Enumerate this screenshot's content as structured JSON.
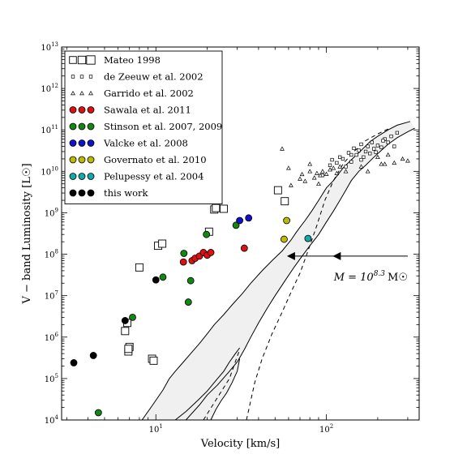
{
  "chart_data": {
    "type": "scatter",
    "xlabel": "Velocity [km/s]",
    "ylabel": "V − band Luminosity [L☉]",
    "xscale": "log",
    "yscale": "log",
    "xlim": [
      2.8,
      350
    ],
    "ylim": [
      10000,
      10000000000000.0
    ],
    "x_tick_labels": [
      {
        "v": 10,
        "base": "10",
        "exp": "1"
      },
      {
        "v": 100,
        "base": "10",
        "exp": "2"
      }
    ],
    "y_tick_labels": [
      {
        "v": 10000.0,
        "base": "10",
        "exp": "4"
      },
      {
        "v": 100000.0,
        "base": "10",
        "exp": "5"
      },
      {
        "v": 1000000.0,
        "base": "10",
        "exp": "6"
      },
      {
        "v": 10000000.0,
        "base": "10",
        "exp": "7"
      },
      {
        "v": 100000000.0,
        "base": "10",
        "exp": "8"
      },
      {
        "v": 1000000000.0,
        "base": "10",
        "exp": "9"
      },
      {
        "v": 10000000000.0,
        "base": "10",
        "exp": "10"
      },
      {
        "v": 100000000000.0,
        "base": "10",
        "exp": "11"
      },
      {
        "v": 1000000000000.0,
        "base": "10",
        "exp": "12"
      },
      {
        "v": 10000000000000.0,
        "base": "10",
        "exp": "13"
      }
    ],
    "grid": false,
    "legend_position": "top-left",
    "annotation": {
      "prefix": "M = 10",
      "exp": "8.3",
      "unit": "M☉",
      "x": 118,
      "y": 90000000.0
    },
    "arrow": {
      "x_from": 300,
      "x_to": 62,
      "y": 90000000.0,
      "head_at": [
        62,
        115
      ]
    },
    "series": [
      {
        "name": "Mateo 1998",
        "marker": "square-large",
        "color": "#ffffff",
        "points": [
          [
            6.6,
            1400000.0
          ],
          [
            6.8,
            2200000.0
          ],
          [
            6.9,
            450000.0
          ],
          [
            7.0,
            580000.0
          ],
          [
            6.9,
            520000.0
          ],
          [
            8.0,
            48000000.0
          ],
          [
            9.5,
            300000.0
          ],
          [
            9.7,
            270000.0
          ],
          [
            10.3,
            160000000.0
          ],
          [
            10.9,
            180000000.0
          ],
          [
            20.5,
            350000000.0
          ],
          [
            22.0,
            1200000000.0
          ],
          [
            22.5,
            1300000000.0
          ],
          [
            25.0,
            1250000000.0
          ],
          [
            52,
            3500000000.0
          ],
          [
            57,
            1900000000.0
          ]
        ]
      },
      {
        "name": "de Zeeuw et al. 2002",
        "marker": "square-small",
        "color": "#ffffff",
        "points": [
          [
            95,
            8000000000.0
          ],
          [
            105,
            14000000000.0
          ],
          [
            115,
            16000000000.0
          ],
          [
            120,
            22000000000.0
          ],
          [
            130,
            13000000000.0
          ],
          [
            135,
            28000000000.0
          ],
          [
            140,
            17000000000.0
          ],
          [
            150,
            25000000000.0
          ],
          [
            155,
            32000000000.0
          ],
          [
            160,
            45000000000.0
          ],
          [
            165,
            22000000000.0
          ],
          [
            170,
            30000000000.0
          ],
          [
            180,
            27000000000.0
          ],
          [
            185,
            50000000000.0
          ],
          [
            190,
            35000000000.0
          ],
          [
            200,
            42000000000.0
          ],
          [
            210,
            38000000000.0
          ],
          [
            220,
            60000000000.0
          ],
          [
            230,
            50000000000.0
          ],
          [
            240,
            70000000000.0
          ],
          [
            250,
            40000000000.0
          ],
          [
            260,
            85000000000.0
          ],
          [
            108,
            19000000000.0
          ],
          [
            125,
            20000000000.0
          ],
          [
            145,
            36000000000.0
          ],
          [
            175,
            40000000000.0
          ],
          [
            195,
            29000000000.0
          ],
          [
            215,
            55000000000.0
          ],
          [
            140,
            25000000000.0
          ],
          [
            160,
            19000000000.0
          ]
        ]
      },
      {
        "name": "Garrido et al. 2002",
        "marker": "triangle",
        "color": "#ffffff",
        "points": [
          [
            55,
            35000000000.0
          ],
          [
            60,
            12000000000.0
          ],
          [
            62,
            4600000000.0
          ],
          [
            70,
            6600000000.0
          ],
          [
            72,
            8500000000.0
          ],
          [
            75,
            5800000000.0
          ],
          [
            80,
            15000000000.0
          ],
          [
            85,
            7000000000.0
          ],
          [
            88,
            9000000000.0
          ],
          [
            90,
            5000000000.0
          ],
          [
            92,
            8000000000.0
          ],
          [
            95,
            10000000000.0
          ],
          [
            100,
            8600000000.0
          ],
          [
            110,
            12000000000.0
          ],
          [
            115,
            9000000000.0
          ],
          [
            120,
            13000000000.0
          ],
          [
            160,
            13000000000.0
          ],
          [
            175,
            10000000000.0
          ],
          [
            200,
            22000000000.0
          ],
          [
            210,
            15000000000.0
          ],
          [
            220,
            15000000000.0
          ],
          [
            230,
            25000000000.0
          ],
          [
            250,
            16000000000.0
          ],
          [
            280,
            20000000000.0
          ],
          [
            300,
            18000000000.0
          ],
          [
            80,
            10000000000.0
          ],
          [
            105,
            11000000000.0
          ],
          [
            130,
            10000000000.0
          ]
        ]
      },
      {
        "name": "Sawala et al. 2011",
        "marker": "circle",
        "color": "#dd1111",
        "points": [
          [
            14.5,
            65000000.0
          ],
          [
            16.3,
            70000000.0
          ],
          [
            17.0,
            80000000.0
          ],
          [
            18.0,
            90000000.0
          ],
          [
            19.0,
            110000000.0
          ],
          [
            20.0,
            95000000.0
          ],
          [
            21.0,
            110000000.0
          ],
          [
            33.0,
            140000000.0
          ]
        ]
      },
      {
        "name": "Stinson et al. 2007, 2009",
        "marker": "circle",
        "color": "#118811",
        "points": [
          [
            4.6,
            15000.0
          ],
          [
            7.3,
            3000000.0
          ],
          [
            11.0,
            28000000.0
          ],
          [
            14.6,
            105000000.0
          ],
          [
            15.5,
            7000000.0
          ],
          [
            16.0,
            23000000.0
          ],
          [
            19.8,
            300000000.0
          ],
          [
            29.5,
            500000000.0
          ]
        ]
      },
      {
        "name": "Valcke et al. 2008",
        "marker": "circle",
        "color": "#1111cc",
        "points": [
          [
            31.0,
            650000000.0
          ],
          [
            35.0,
            750000000.0
          ]
        ]
      },
      {
        "name": "Governato et al. 2010",
        "marker": "circle",
        "color": "#bbbb00",
        "points": [
          [
            56.5,
            230000000.0
          ],
          [
            58.5,
            650000000.0
          ]
        ]
      },
      {
        "name": "Pelupessy et al. 2004",
        "marker": "circle",
        "color": "#11aaaa",
        "points": [
          [
            78,
            240000000.0
          ]
        ]
      },
      {
        "name": "this work",
        "marker": "circle",
        "color": "#000000",
        "points": [
          [
            3.3,
            240000.0
          ],
          [
            4.3,
            360000.0
          ],
          [
            6.6,
            2500000.0
          ],
          [
            10.0,
            24000000.0
          ]
        ]
      }
    ],
    "curves": {
      "band_upper": [
        [
          8.3,
          10000.0
        ],
        [
          9.5,
          22000.0
        ],
        [
          11,
          53000.0
        ],
        [
          12,
          100000.0
        ],
        [
          13,
          150000.0
        ],
        [
          14.5,
          250000.0
        ],
        [
          16,
          400000.0
        ],
        [
          18,
          700000.0
        ],
        [
          20,
          1200000.0
        ],
        [
          22,
          2000000.0
        ],
        [
          25,
          3500000.0
        ],
        [
          28,
          6000000.0
        ],
        [
          32,
          11000000.0
        ],
        [
          36,
          20000000.0
        ],
        [
          42,
          40000000.0
        ],
        [
          48,
          70000000.0
        ],
        [
          55,
          120000000.0
        ],
        [
          62,
          220000000.0
        ],
        [
          66,
          320000000.0
        ],
        [
          70,
          450000000.0
        ],
        [
          75,
          650000000.0
        ],
        [
          82,
          1100000000.0
        ],
        [
          90,
          2000000000.0
        ],
        [
          100,
          4000000000.0
        ],
        [
          110,
          6000000000.0
        ],
        [
          125,
          12000000000.0
        ],
        [
          140,
          19000000000.0
        ],
        [
          160,
          32000000000.0
        ],
        [
          180,
          52000000000.0
        ],
        [
          200,
          70000000000.0
        ],
        [
          230,
          100000000000.0
        ],
        [
          260,
          130000000000.0
        ],
        [
          310,
          160000000000.0
        ]
      ],
      "band_lower": [
        [
          15,
          10000.0
        ],
        [
          18,
          23000.0
        ],
        [
          20,
          40000.0
        ],
        [
          23,
          70000.0
        ],
        [
          27,
          150000.0
        ],
        [
          30,
          250000.0
        ],
        [
          33,
          500000.0
        ],
        [
          36,
          1000000.0
        ],
        [
          40,
          2200000.0
        ],
        [
          45,
          5000000.0
        ],
        [
          50,
          10000000.0
        ],
        [
          58,
          25000000.0
        ],
        [
          65,
          50000000.0
        ],
        [
          72,
          90000000.0
        ],
        [
          80,
          160000000.0
        ],
        [
          90,
          300000000.0
        ],
        [
          100,
          600000000.0
        ],
        [
          110,
          1100000000.0
        ],
        [
          120,
          2000000000.0
        ],
        [
          130,
          3500000000.0
        ],
        [
          140,
          6000000000.0
        ],
        [
          155,
          10000000000.0
        ],
        [
          170,
          14000000000.0
        ],
        [
          190,
          22000000000.0
        ],
        [
          210,
          32000000000.0
        ],
        [
          230,
          45000000000.0
        ],
        [
          260,
          65000000000.0
        ],
        [
          300,
          90000000000.0
        ],
        [
          330,
          110000000000.0
        ]
      ],
      "inner_upper": [
        [
          13,
          10000.0
        ],
        [
          15,
          16000.0
        ],
        [
          17.5,
          29000.0
        ],
        [
          20,
          50000.0
        ],
        [
          23,
          100000.0
        ],
        [
          25,
          150000.0
        ],
        [
          27,
          250000.0
        ],
        [
          29,
          380000.0
        ],
        [
          31,
          550000.0
        ]
      ],
      "inner_lower": [
        [
          21,
          10000.0
        ],
        [
          22.5,
          18000.0
        ],
        [
          24,
          28000.0
        ],
        [
          26,
          45000.0
        ],
        [
          28,
          80000.0
        ],
        [
          30,
          150000.0
        ],
        [
          31,
          300000.0
        ]
      ],
      "dashed_1": [
        [
          19,
          10000.0
        ],
        [
          23,
          35000.0
        ],
        [
          27,
          100000.0
        ],
        [
          31,
          500000.0
        ]
      ],
      "dashed_2": [
        [
          34,
          10000.0
        ],
        [
          38,
          80000.0
        ],
        [
          42,
          300000.0
        ],
        [
          48,
          1200000.0
        ],
        [
          55,
          4000000.0
        ],
        [
          62,
          12000000.0
        ],
        [
          70,
          35000000.0
        ],
        [
          78,
          120000000.0
        ],
        [
          88,
          500000000.0
        ],
        [
          98,
          2000000000.0
        ],
        [
          110,
          6000000000.0
        ],
        [
          125,
          15000000000.0
        ],
        [
          145,
          30000000000.0
        ],
        [
          170,
          55000000000.0
        ],
        [
          200,
          80000000000.0
        ],
        [
          230,
          105000000000.0
        ]
      ]
    }
  }
}
